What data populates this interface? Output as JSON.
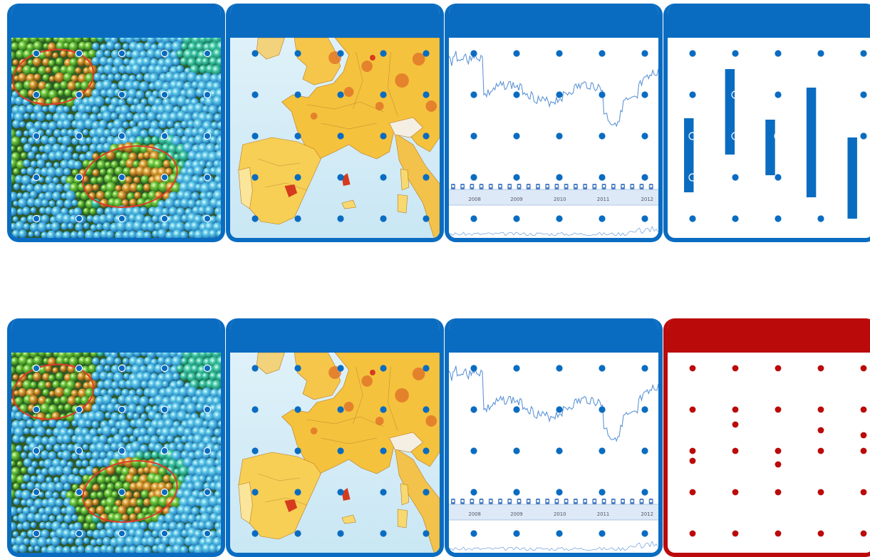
{
  "colors": {
    "panel_blue": "#0a6cc1",
    "panel_red": "#bb0a0a",
    "dot_blue": "#0a6cc1",
    "dot_red": "#bb0a0a"
  },
  "timeline_labels": [
    "2008",
    "2009",
    "2010",
    "2011",
    "2012"
  ],
  "rows": [
    {
      "panels": [
        {
          "kind": "bubbles"
        },
        {
          "kind": "map"
        },
        {
          "kind": "timeseries"
        },
        {
          "kind": "bars"
        }
      ]
    },
    {
      "panels": [
        {
          "kind": "bubbles"
        },
        {
          "kind": "map"
        },
        {
          "kind": "timeseries"
        },
        {
          "kind": "reddots"
        }
      ]
    }
  ]
}
